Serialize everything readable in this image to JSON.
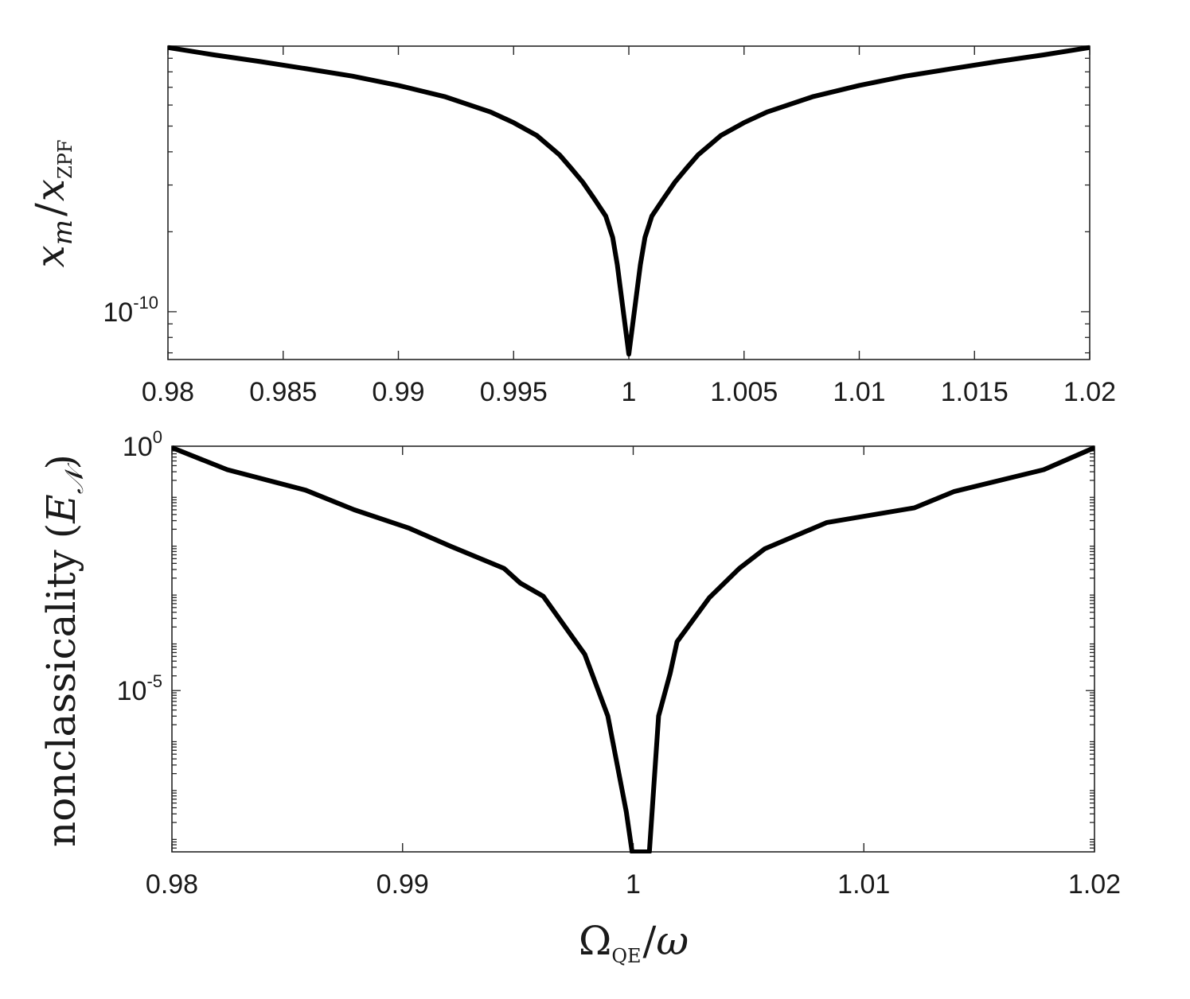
{
  "chart_data": [
    {
      "type": "line",
      "panel": "top",
      "ylabel": {
        "base": "x",
        "sub": "m",
        "sep": "/",
        "base2": "x",
        "sub2": "ZPF"
      },
      "xlabel": "",
      "xlim": [
        0.98,
        1.02
      ],
      "yscale": "log",
      "ylim_log10": [
        -10.18,
        -9.0
      ],
      "xticks": [
        0.98,
        0.985,
        0.99,
        0.995,
        1,
        1.005,
        1.01,
        1.015,
        1.02
      ],
      "xtick_labels": [
        "0.98",
        "0.985",
        "0.99",
        "0.995",
        "1",
        "1.005",
        "1.01",
        "1.015",
        "1.02"
      ],
      "ytick_labels": [
        {
          "base": "10",
          "exp": "-10",
          "log10": -10
        }
      ],
      "series": [
        {
          "color": "#000000",
          "x": [
            0.98,
            0.982,
            0.984,
            0.986,
            0.988,
            0.99,
            0.992,
            0.994,
            0.995,
            0.996,
            0.997,
            0.9975,
            0.998,
            0.9985,
            0.999,
            0.9993,
            0.9995,
            1.0,
            1.0005,
            1.0007,
            1.001,
            1.0015,
            1.002,
            1.0025,
            1.003,
            1.004,
            1.005,
            1.006,
            1.008,
            1.01,
            1.012,
            1.014,
            1.016,
            1.018,
            1.02
          ],
          "y_log10": [
            -9.005,
            -9.033,
            -9.058,
            -9.085,
            -9.113,
            -9.148,
            -9.19,
            -9.248,
            -9.288,
            -9.336,
            -9.41,
            -9.46,
            -9.512,
            -9.575,
            -9.64,
            -9.72,
            -9.823,
            -10.16,
            -9.823,
            -9.72,
            -9.64,
            -9.575,
            -9.512,
            -9.46,
            -9.41,
            -9.336,
            -9.288,
            -9.248,
            -9.19,
            -9.148,
            -9.113,
            -9.085,
            -9.058,
            -9.033,
            -9.005
          ]
        }
      ]
    },
    {
      "type": "line",
      "panel": "bottom",
      "ylabel": {
        "text": "nonclassicality",
        "paren_open": "(",
        "base": "E",
        "sub": "𝒩",
        "paren_close": ")"
      },
      "xlabel": {
        "base": "Ω",
        "sub": "QE",
        "sep": "/",
        "base2": "ω"
      },
      "xlim": [
        0.98,
        1.02
      ],
      "yscale": "log",
      "ylim_log10": [
        -8.3,
        0
      ],
      "xticks": [
        0.98,
        0.99,
        1,
        1.01,
        1.02
      ],
      "xtick_labels": [
        "0.98",
        "0.99",
        "1",
        "1.01",
        "1.02"
      ],
      "ytick_labels": [
        {
          "base": "10",
          "exp": "0",
          "log10": 0
        },
        {
          "base": "10",
          "exp": "-5",
          "log10": -5
        }
      ],
      "series": [
        {
          "color": "#000000",
          "x": [
            0.98,
            0.9824,
            0.9858,
            0.9879,
            0.9903,
            0.9921,
            0.9944,
            0.9951,
            0.9961,
            0.9979,
            0.9989,
            0.9997,
            0.99995,
            1.0007,
            1.0011,
            1.0016,
            1.0019,
            1.0033,
            1.0046,
            1.0057,
            1.0084,
            1.0122,
            1.0139,
            1.0178,
            1.02
          ],
          "y_log10": [
            -0.03,
            -0.48,
            -0.9,
            -1.3,
            -1.68,
            -2.05,
            -2.5,
            -2.8,
            -3.07,
            -4.26,
            -5.52,
            -7.48,
            -8.3,
            -8.3,
            -5.52,
            -4.65,
            -4.0,
            -3.1,
            -2.5,
            -2.1,
            -1.56,
            -1.26,
            -0.93,
            -0.48,
            -0.03
          ]
        }
      ]
    }
  ]
}
